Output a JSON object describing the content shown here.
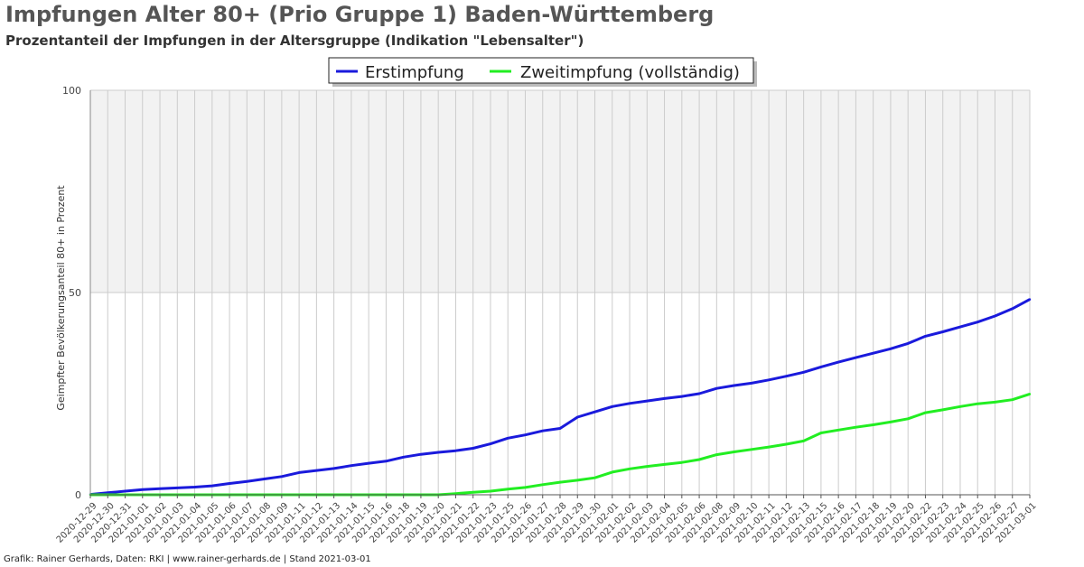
{
  "header": {
    "title": "Impfungen Alter 80+ (Prio Gruppe 1) Baden-Württemberg",
    "subtitle": "Prozentanteil der Impfungen in der Altersgruppe (Indikation \"Lebensalter\")"
  },
  "footer": {
    "credit": "Grafik: Rainer Gerhards, Daten: RKI | www.rainer-gerhards.de | Stand 2021-03-01"
  },
  "colors": {
    "series1": "#1a1adc",
    "series2": "#22ee22",
    "shaded_band": "#f2f2f2",
    "grid": "#cccccc"
  },
  "chart_data": {
    "type": "line",
    "title": "Impfungen Alter 80+ (Prio Gruppe 1) Baden-Württemberg",
    "subtitle": "Prozentanteil der Impfungen in der Altersgruppe (Indikation \"Lebensalter\")",
    "xlabel": "",
    "ylabel": "Geimpfter Bevölkerungsanteil 80+ in Prozent",
    "ylim": [
      0,
      100
    ],
    "yticks": [
      0,
      50,
      100
    ],
    "shaded_band_y": [
      50,
      100
    ],
    "grid": true,
    "legend_position": "top-center",
    "x": [
      "2020-12-29",
      "2020-12-30",
      "2020-12-31",
      "2021-01-01",
      "2021-01-02",
      "2021-01-03",
      "2021-01-04",
      "2021-01-05",
      "2021-01-06",
      "2021-01-07",
      "2021-01-08",
      "2021-01-09",
      "2021-01-11",
      "2021-01-12",
      "2021-01-13",
      "2021-01-14",
      "2021-01-15",
      "2021-01-16",
      "2021-01-18",
      "2021-01-19",
      "2021-01-20",
      "2021-01-21",
      "2021-01-22",
      "2021-01-23",
      "2021-01-25",
      "2021-01-26",
      "2021-01-27",
      "2021-01-28",
      "2021-01-29",
      "2021-01-30",
      "2021-02-01",
      "2021-02-02",
      "2021-02-03",
      "2021-02-04",
      "2021-02-05",
      "2021-02-06",
      "2021-02-08",
      "2021-02-09",
      "2021-02-10",
      "2021-02-11",
      "2021-02-12",
      "2021-02-13",
      "2021-02-15",
      "2021-02-16",
      "2021-02-17",
      "2021-02-18",
      "2021-02-19",
      "2021-02-20",
      "2021-02-22",
      "2021-02-23",
      "2021-02-24",
      "2021-02-25",
      "2021-02-26",
      "2021-02-27",
      "2021-03-01"
    ],
    "series": [
      {
        "name": "Erstimpfung",
        "values": [
          0.1,
          0.5,
          0.9,
          1.3,
          1.5,
          1.7,
          1.9,
          2.2,
          2.8,
          3.3,
          3.9,
          4.5,
          5.5,
          6.0,
          6.5,
          7.2,
          7.8,
          8.3,
          9.3,
          10.0,
          10.5,
          10.9,
          11.5,
          12.6,
          14.0,
          14.8,
          15.8,
          16.4,
          19.2,
          20.5,
          21.8,
          22.6,
          23.2,
          23.8,
          24.3,
          25.0,
          26.3,
          27.0,
          27.6,
          28.4,
          29.3,
          30.3,
          31.6,
          32.8,
          33.9,
          35.0,
          36.1,
          37.4,
          39.2,
          40.3,
          41.5,
          42.7,
          44.2,
          46.0,
          48.3
        ]
      },
      {
        "name": "Zweitimpfung (vollständig)",
        "values": [
          0,
          0,
          0,
          0,
          0,
          0,
          0,
          0,
          0,
          0,
          0,
          0,
          0,
          0,
          0,
          0,
          0,
          0,
          0,
          0,
          0,
          0.3,
          0.6,
          0.9,
          1.4,
          1.8,
          2.5,
          3.1,
          3.6,
          4.2,
          5.6,
          6.4,
          7.0,
          7.5,
          8.0,
          8.7,
          9.9,
          10.6,
          11.2,
          11.8,
          12.5,
          13.3,
          15.3,
          16.0,
          16.7,
          17.3,
          18.0,
          18.8,
          20.3,
          21.0,
          21.8,
          22.5,
          22.9,
          23.5,
          24.9
        ]
      }
    ]
  }
}
